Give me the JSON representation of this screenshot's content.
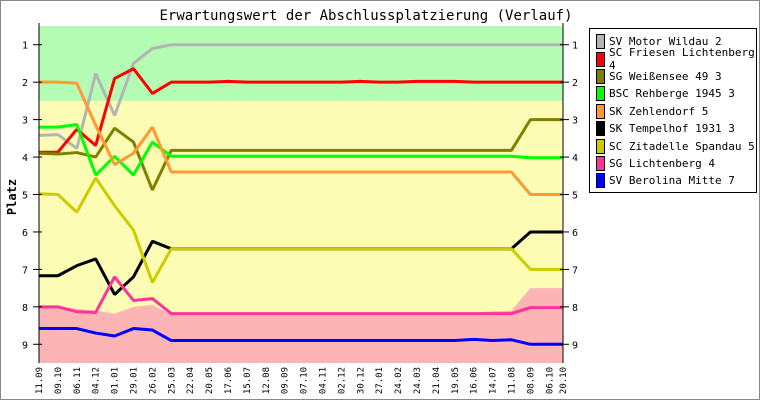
{
  "chart_data": {
    "type": "line",
    "title": "Erwartungswert der Abschlussplatzierung (Verlauf)",
    "xlabel": "",
    "ylabel": "Platz",
    "ylim": [
      0.5,
      9.5
    ],
    "y_inverted": true,
    "y_ticks": [
      "1",
      "2",
      "3",
      "4",
      "5",
      "6",
      "7",
      "8",
      "9"
    ],
    "categories": [
      "11.09",
      "09.10",
      "06.11",
      "04.12",
      "01.01",
      "29.01",
      "26.02",
      "25.03",
      "22.04",
      "20.05",
      "17.06",
      "15.07",
      "12.08",
      "09.09",
      "07.10",
      "04.11",
      "02.12",
      "30.12",
      "27.01",
      "24.02",
      "24.03",
      "21.04",
      "19.05",
      "16.06",
      "14.07",
      "11.08",
      "08.09",
      "06.10",
      "20.10"
    ],
    "legend_position": "right",
    "zones": {
      "promotion": {
        "from": 0.5,
        "to": 2.5,
        "color": "#b4fcb4"
      },
      "middle": {
        "color": "#fcfcb4"
      },
      "relegation_top": [
        8.0,
        8.0,
        8.05,
        8.1,
        8.18,
        8.0,
        7.95,
        8.2,
        8.15,
        8.15,
        8.15,
        8.15,
        8.15,
        8.15,
        8.15,
        8.15,
        8.15,
        8.15,
        8.15,
        8.15,
        8.15,
        8.15,
        8.15,
        8.15,
        8.12,
        8.1,
        7.5,
        7.5,
        7.5
      ],
      "relegation_color": "#fcb4b4"
    },
    "series": [
      {
        "name": "SV Motor Wildau 2",
        "color": "#b4b4b4",
        "values": [
          3.42,
          3.4,
          3.77,
          1.77,
          2.89,
          1.5,
          1.1,
          1.0,
          1,
          1,
          1,
          1,
          1,
          1,
          1,
          1,
          1,
          1,
          1,
          1,
          1,
          1,
          1,
          1,
          1,
          1,
          1,
          1,
          1
        ]
      },
      {
        "name": "SC Friesen Lichtenberg 4",
        "color": "#ff0000",
        "values": [
          3.87,
          3.87,
          3.26,
          3.69,
          1.9,
          1.64,
          2.3,
          2.0,
          2,
          2,
          1.98,
          2,
          2,
          2,
          2,
          2,
          2,
          1.98,
          2,
          2,
          1.98,
          1.98,
          1.98,
          2,
          2,
          2,
          2,
          2,
          2
        ]
      },
      {
        "name": "SG Weißensee 49 3",
        "color": "#808000",
        "values": [
          3.9,
          3.92,
          3.88,
          4.0,
          3.23,
          3.6,
          4.88,
          3.82,
          3.82,
          3.82,
          3.82,
          3.82,
          3.82,
          3.82,
          3.82,
          3.82,
          3.82,
          3.82,
          3.82,
          3.82,
          3.82,
          3.82,
          3.82,
          3.82,
          3.82,
          3.82,
          3.0,
          3.0,
          3.0
        ]
      },
      {
        "name": "BSC Rehberge 1945 3",
        "color": "#00ff00",
        "values": [
          3.2,
          3.2,
          3.13,
          4.48,
          3.98,
          4.48,
          3.6,
          3.98,
          3.98,
          3.98,
          3.98,
          3.98,
          3.98,
          3.98,
          3.98,
          3.98,
          3.98,
          3.98,
          3.98,
          3.98,
          3.98,
          3.98,
          3.98,
          3.98,
          3.98,
          3.98,
          4.02,
          4.02,
          4.02
        ]
      },
      {
        "name": "SK Zehlendorf 5",
        "color": "#ff9933",
        "values": [
          2.0,
          2.0,
          2.03,
          3.15,
          4.2,
          3.9,
          3.2,
          4.4,
          4.4,
          4.4,
          4.4,
          4.4,
          4.4,
          4.4,
          4.4,
          4.4,
          4.4,
          4.4,
          4.4,
          4.4,
          4.4,
          4.4,
          4.4,
          4.4,
          4.4,
          4.4,
          5.0,
          5.0,
          5.0
        ]
      },
      {
        "name": "SK Tempelhof 1931 3",
        "color": "#000000",
        "values": [
          7.17,
          7.17,
          6.9,
          6.72,
          7.67,
          7.2,
          6.25,
          6.45,
          6.45,
          6.45,
          6.45,
          6.45,
          6.45,
          6.45,
          6.45,
          6.45,
          6.45,
          6.45,
          6.45,
          6.45,
          6.45,
          6.45,
          6.45,
          6.45,
          6.45,
          6.45,
          6.0,
          6.0,
          6.0
        ]
      },
      {
        "name": "SC Zitadelle Spandau 5",
        "color": "#cccc00",
        "values": [
          4.98,
          5.0,
          5.47,
          4.56,
          5.3,
          5.95,
          7.35,
          6.45,
          6.45,
          6.45,
          6.45,
          6.45,
          6.45,
          6.45,
          6.45,
          6.45,
          6.45,
          6.45,
          6.45,
          6.45,
          6.45,
          6.45,
          6.45,
          6.45,
          6.45,
          6.45,
          7.0,
          7.0,
          7.0
        ]
      },
      {
        "name": "SG Lichtenberg 4",
        "color": "#ff3399",
        "values": [
          8.0,
          8.0,
          8.13,
          8.15,
          7.2,
          7.83,
          7.78,
          8.18,
          8.18,
          8.18,
          8.18,
          8.18,
          8.18,
          8.18,
          8.18,
          8.18,
          8.18,
          8.18,
          8.18,
          8.18,
          8.18,
          8.18,
          8.18,
          8.18,
          8.18,
          8.18,
          8.02,
          8.02,
          8.02
        ]
      },
      {
        "name": "SV Berolina Mitte 7",
        "color": "#0000ff",
        "values": [
          8.58,
          8.58,
          8.58,
          8.7,
          8.78,
          8.58,
          8.62,
          8.9,
          8.9,
          8.9,
          8.9,
          8.9,
          8.9,
          8.9,
          8.9,
          8.9,
          8.9,
          8.9,
          8.9,
          8.9,
          8.9,
          8.9,
          8.9,
          8.87,
          8.9,
          8.88,
          9.0,
          9.0,
          9.0
        ]
      }
    ]
  }
}
